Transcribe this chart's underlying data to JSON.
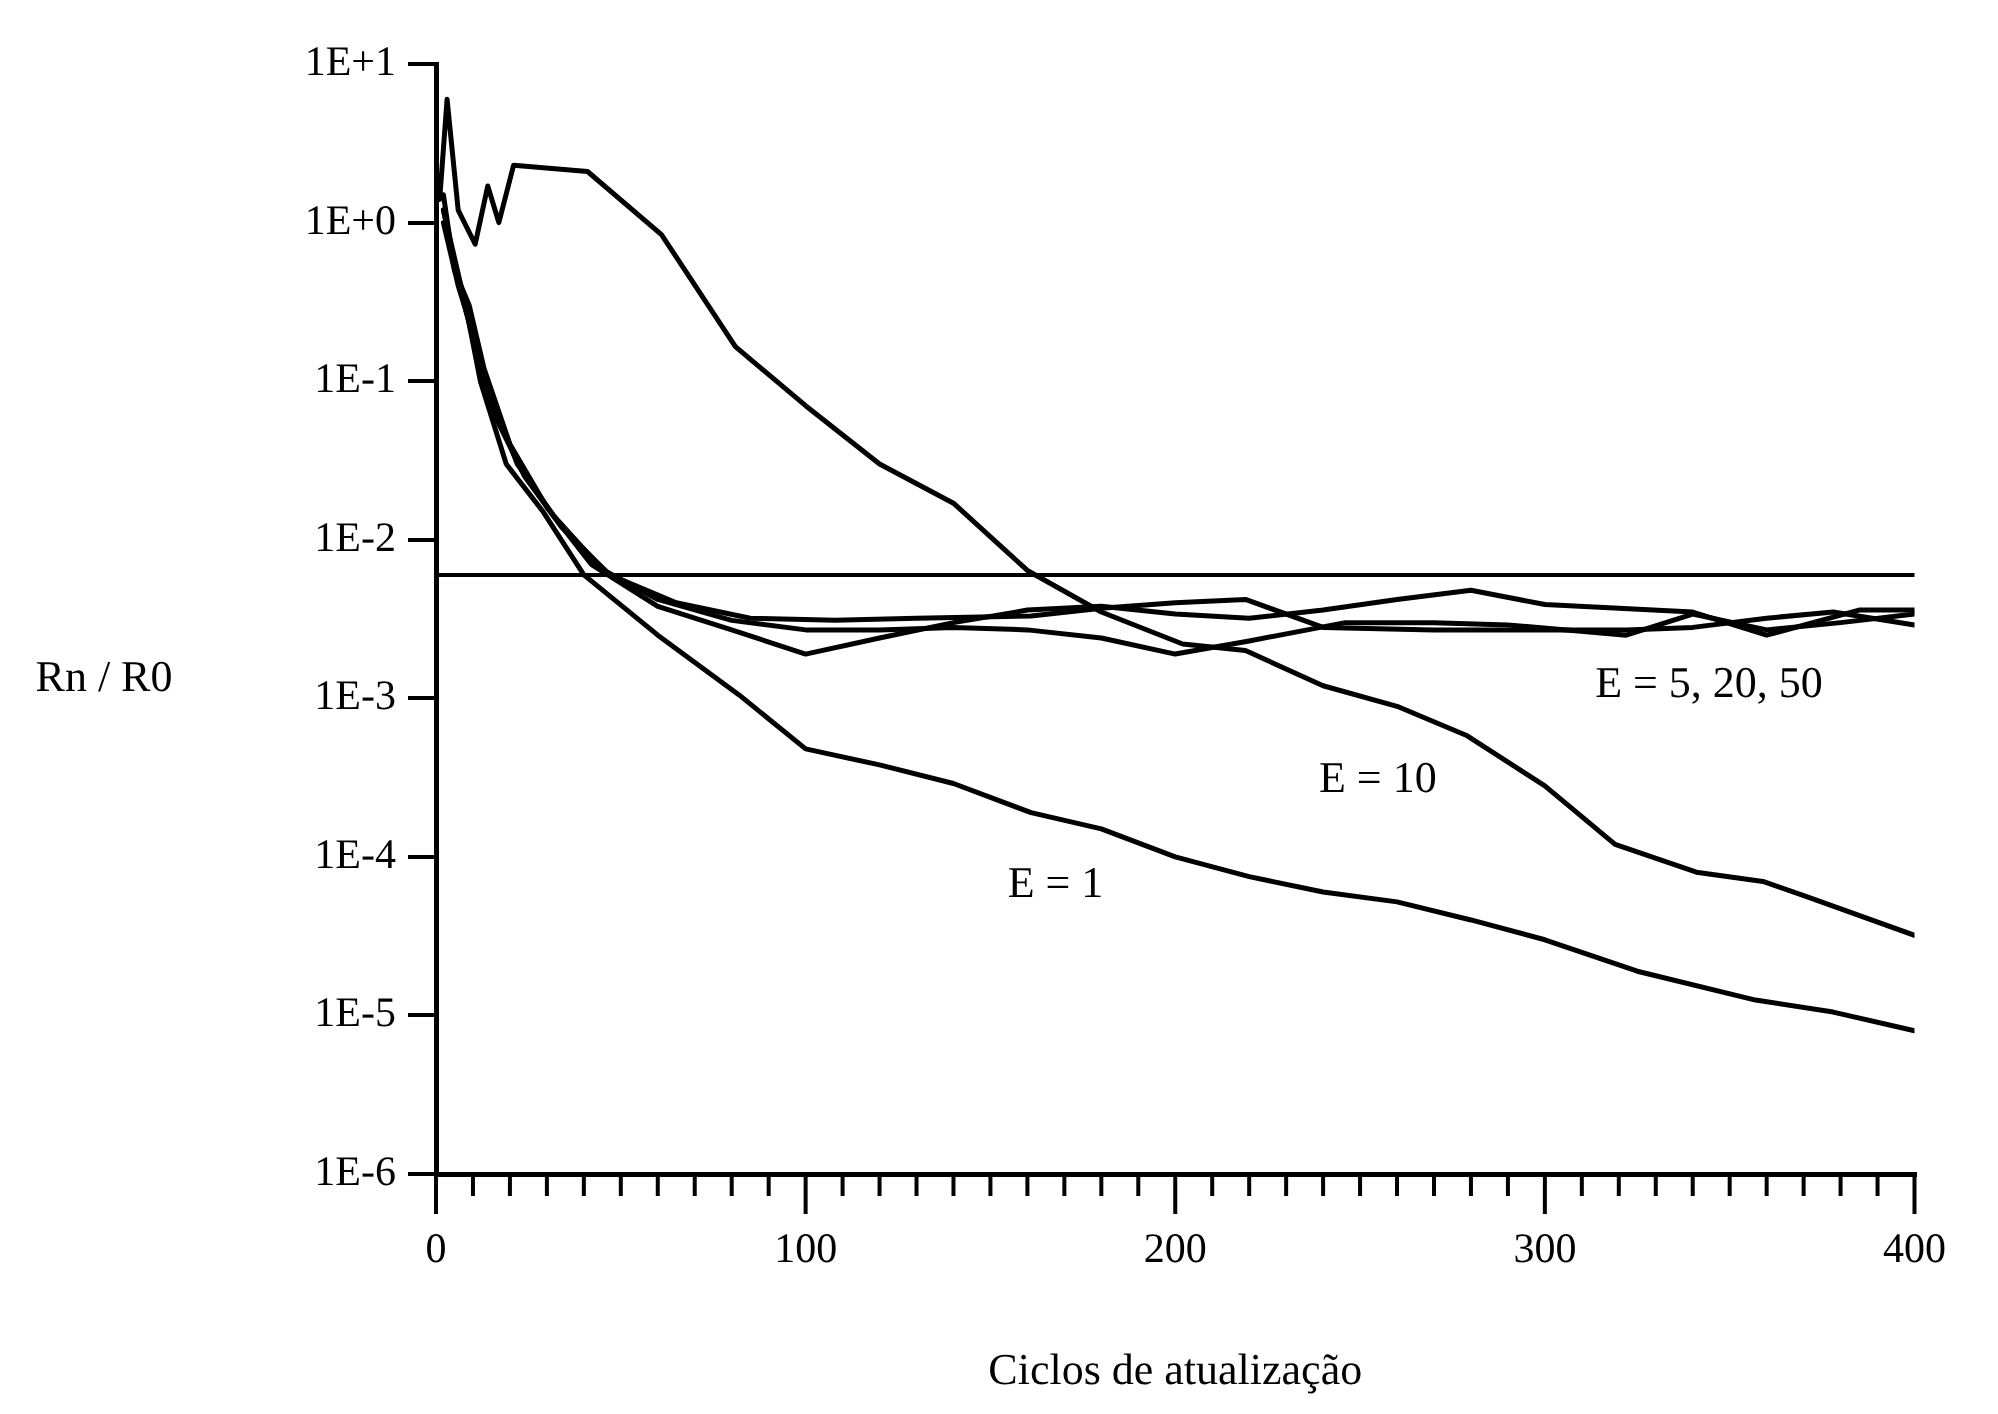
{
  "chart_data": {
    "type": "line",
    "xlabel": "Ciclos de atualização",
    "ylabel": "Rn / R0",
    "log": "y",
    "grid": false,
    "legend": false,
    "marker": "none",
    "line_style": "solid",
    "xlim": [
      0,
      400
    ],
    "ylim": [
      1e-06,
      10
    ],
    "xticks": [
      0,
      {
        "value": 10,
        "label": null
      },
      {
        "value": 20,
        "label": null
      },
      {
        "value": 30,
        "label": null
      },
      {
        "value": 40,
        "label": null
      },
      {
        "value": 50,
        "label": null
      },
      {
        "value": 60,
        "label": null
      },
      {
        "value": 70,
        "label": null
      },
      {
        "value": 80,
        "label": null
      },
      {
        "value": 90,
        "label": null
      },
      100,
      {
        "value": 110,
        "label": null
      },
      {
        "value": 120,
        "label": null
      },
      {
        "value": 130,
        "label": null
      },
      {
        "value": 140,
        "label": null
      },
      {
        "value": 150,
        "label": null
      },
      {
        "value": 160,
        "label": null
      },
      {
        "value": 170,
        "label": null
      },
      {
        "value": 180,
        "label": null
      },
      {
        "value": 190,
        "label": null
      },
      200,
      {
        "value": 210,
        "label": null
      },
      {
        "value": 220,
        "label": null
      },
      {
        "value": 230,
        "label": null
      },
      {
        "value": 240,
        "label": null
      },
      {
        "value": 250,
        "label": null
      },
      {
        "value": 260,
        "label": null
      },
      {
        "value": 270,
        "label": null
      },
      {
        "value": 280,
        "label": null
      },
      {
        "value": 290,
        "label": null
      },
      300,
      {
        "value": 310,
        "label": null
      },
      {
        "value": 320,
        "label": null
      },
      {
        "value": 330,
        "label": null
      },
      {
        "value": 340,
        "label": null
      },
      {
        "value": 350,
        "label": null
      },
      {
        "value": 360,
        "label": null
      },
      {
        "value": 370,
        "label": null
      },
      {
        "value": 380,
        "label": null
      },
      {
        "value": 390,
        "label": null
      },
      400
    ],
    "yticks": [
      {
        "value": 1e-06,
        "label": "1E-6"
      },
      {
        "value": 1e-05,
        "label": "1E-5"
      },
      {
        "value": 0.0001,
        "label": "1E-4"
      },
      {
        "value": 0.001,
        "label": "1E-3"
      },
      {
        "value": 0.01,
        "label": "1E-2"
      },
      {
        "value": 0.1,
        "label": "1E-1"
      },
      {
        "value": 1,
        "label": "1E+0"
      },
      {
        "value": 10,
        "label": "1E+1"
      }
    ],
    "ref_lines": [
      {
        "axis": "y",
        "value": 0.006,
        "color": "#000000"
      }
    ],
    "annotations": [
      "E = 5, 20, 50",
      "E = 10",
      "E = 1"
    ],
    "series": [
      {
        "color": "#000000",
        "x": [
          2,
          8,
          12,
          19,
          29,
          40,
          60,
          82,
          100,
          120,
          140,
          161,
          180,
          200,
          220,
          240,
          260,
          280,
          300,
          325,
          357,
          378,
          400
        ],
        "values": [
          1.2,
          0.3,
          0.1,
          0.03,
          0.015,
          0.006,
          0.0025,
          0.00105,
          0.00048,
          0.00038,
          0.00029,
          0.00019,
          0.00015,
          0.0001,
          7.5e-05,
          6e-05,
          5.2e-05,
          4e-05,
          3e-05,
          1.9e-05,
          1.25e-05,
          1.05e-05,
          8e-06
        ]
      },
      {
        "color": "#000000",
        "x": [
          1,
          3,
          6,
          10.6,
          14,
          17,
          21,
          41,
          61,
          81,
          100,
          120,
          140,
          160,
          180,
          202,
          219,
          240,
          260,
          279,
          300,
          319,
          341,
          359,
          371,
          400
        ],
        "values": [
          1.4,
          6,
          1.2,
          0.73,
          1.7,
          1.0,
          2.3,
          2.1,
          0.84,
          0.165,
          0.07,
          0.03,
          0.017,
          0.0064,
          0.0035,
          0.0022,
          0.002,
          0.0012,
          0.00089,
          0.00058,
          0.00028,
          0.00012,
          8e-05,
          7e-05,
          5.6e-05,
          3.2e-05
        ]
      },
      {
        "color": "#000000",
        "x": [
          2,
          5,
          9,
          13,
          20,
          30,
          42,
          60,
          80,
          100,
          120,
          140,
          160,
          180,
          200,
          220,
          240,
          260,
          280,
          300,
          320,
          340,
          360,
          385,
          400
        ],
        "values": [
          1.5,
          0.5,
          0.3,
          0.12,
          0.04,
          0.016,
          0.007,
          0.0038,
          0.0027,
          0.0019,
          0.0024,
          0.003,
          0.0036,
          0.0038,
          0.0034,
          0.0032,
          0.0036,
          0.0042,
          0.0048,
          0.0039,
          0.0037,
          0.0035,
          0.0025,
          0.0036,
          0.0036
        ]
      },
      {
        "color": "#000000",
        "x": [
          2,
          6,
          10,
          15,
          22,
          32,
          45,
          60,
          80,
          100,
          120,
          140,
          160,
          180,
          200,
          220,
          246,
          270,
          290,
          322,
          340,
          360,
          380,
          400
        ],
        "values": [
          1.0,
          0.4,
          0.2,
          0.08,
          0.03,
          0.014,
          0.0065,
          0.0042,
          0.0031,
          0.0027,
          0.0027,
          0.0028,
          0.0027,
          0.0024,
          0.0019,
          0.0023,
          0.003,
          0.003,
          0.0029,
          0.0025,
          0.0034,
          0.0027,
          0.003,
          0.0034
        ]
      },
      {
        "color": "#000000",
        "x": [
          2,
          7,
          11,
          16,
          24,
          34,
          47,
          65,
          85,
          108,
          130,
          161,
          180,
          200,
          219,
          240,
          270,
          300,
          322,
          340,
          360,
          378,
          400
        ],
        "values": [
          1.2,
          0.35,
          0.15,
          0.06,
          0.025,
          0.012,
          0.006,
          0.004,
          0.0032,
          0.0031,
          0.0032,
          0.0033,
          0.0037,
          0.004,
          0.0042,
          0.0028,
          0.0027,
          0.0027,
          0.0027,
          0.0028,
          0.0032,
          0.0035,
          0.0029
        ]
      }
    ]
  }
}
